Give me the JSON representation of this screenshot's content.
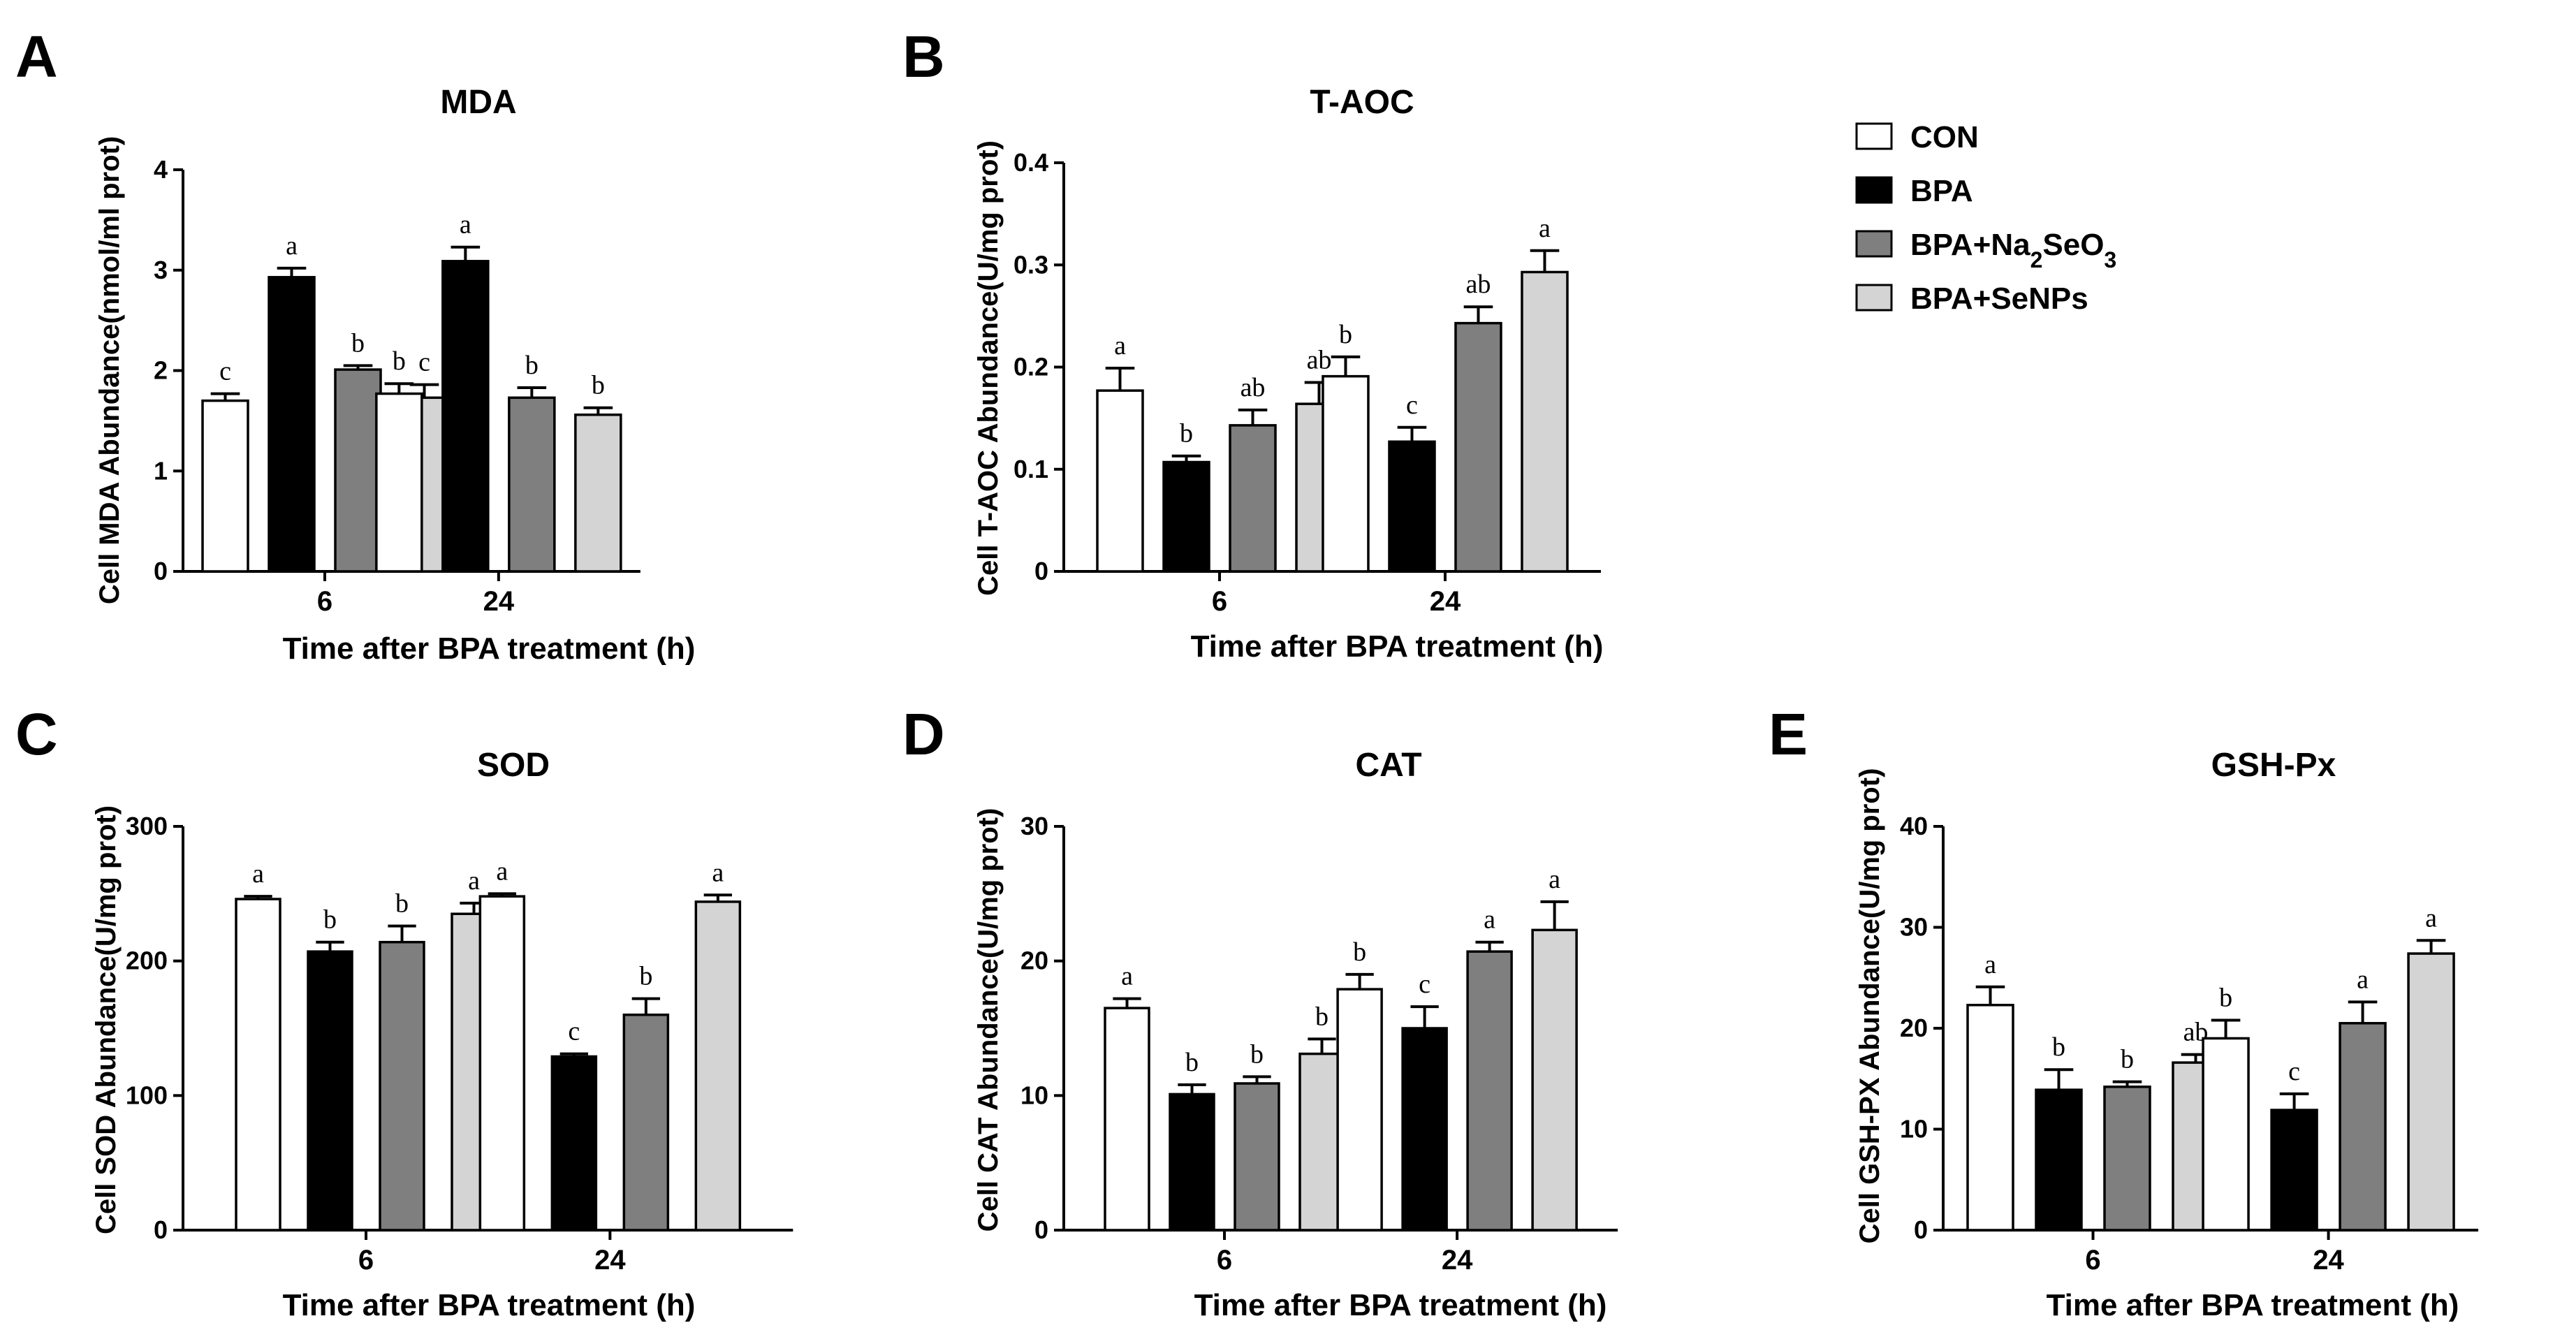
{
  "chart_data": [
    {
      "type": "bar",
      "panel": "A",
      "title": "MDA",
      "ylabel": "Cell MDA Abundance(nmol/ml prot)",
      "xlabel": "Time after BPA treatment (h)",
      "categories": [
        "6",
        "24"
      ],
      "ylim": [
        0,
        4
      ],
      "yticks": [
        "0",
        "1",
        "2",
        "3",
        "4"
      ],
      "series": [
        {
          "name": "CON",
          "values": [
            1.7,
            1.77
          ],
          "errors": [
            0.07,
            0.1
          ],
          "letters": [
            "c",
            "b"
          ]
        },
        {
          "name": "BPA",
          "values": [
            2.93,
            3.09
          ],
          "errors": [
            0.09,
            0.14
          ],
          "letters": [
            "a",
            "a"
          ]
        },
        {
          "name": "BPA+Na2SeO3",
          "values": [
            2.01,
            1.73
          ],
          "errors": [
            0.04,
            0.1
          ],
          "letters": [
            "b",
            "b"
          ]
        },
        {
          "name": "BPA+SeNPs",
          "values": [
            1.73,
            1.56
          ],
          "errors": [
            0.13,
            0.07
          ],
          "letters": [
            "c",
            "b"
          ]
        }
      ]
    },
    {
      "type": "bar",
      "panel": "B",
      "title": "T-AOC",
      "ylabel": "Cell T-AOC Abundance(U/mg prot)",
      "xlabel": "Time after BPA treatment (h)",
      "categories": [
        "6",
        "24"
      ],
      "ylim": [
        0,
        0.4
      ],
      "yticks": [
        "0",
        "0.1",
        "0.2",
        "0.3",
        "0.4"
      ],
      "series": [
        {
          "name": "CON",
          "values": [
            0.177,
            0.191
          ],
          "errors": [
            0.022,
            0.019
          ],
          "letters": [
            "a",
            "b"
          ]
        },
        {
          "name": "BPA",
          "values": [
            0.107,
            0.127
          ],
          "errors": [
            0.006,
            0.014
          ],
          "letters": [
            "b",
            "c"
          ]
        },
        {
          "name": "BPA+Na2SeO3",
          "values": [
            0.143,
            0.243
          ],
          "errors": [
            0.015,
            0.016
          ],
          "letters": [
            "ab",
            "ab"
          ]
        },
        {
          "name": "BPA+SeNPs",
          "values": [
            0.164,
            0.293
          ],
          "errors": [
            0.021,
            0.021
          ],
          "letters": [
            "ab",
            "a"
          ]
        }
      ]
    },
    {
      "type": "bar",
      "panel": "C",
      "title": "SOD",
      "ylabel": "Cell SOD Abundance(U/mg prot)",
      "xlabel": "Time after BPA treatment (h)",
      "categories": [
        "6",
        "24"
      ],
      "ylim": [
        0,
        300
      ],
      "yticks": [
        "0",
        "100",
        "200",
        "300"
      ],
      "series": [
        {
          "name": "CON",
          "values": [
            246,
            248
          ],
          "errors": [
            2,
            2
          ],
          "letters": [
            "a",
            "a"
          ]
        },
        {
          "name": "BPA",
          "values": [
            207,
            129
          ],
          "errors": [
            7,
            2
          ],
          "letters": [
            "b",
            "c"
          ]
        },
        {
          "name": "BPA+Na2SeO3",
          "values": [
            214,
            160
          ],
          "errors": [
            12,
            12
          ],
          "letters": [
            "b",
            "b"
          ]
        },
        {
          "name": "BPA+SeNPs",
          "values": [
            235,
            244
          ],
          "errors": [
            8,
            5
          ],
          "letters": [
            "a",
            "a"
          ]
        }
      ]
    },
    {
      "type": "bar",
      "panel": "D",
      "title": "CAT",
      "ylabel": "Cell CAT Abundance(U/mg prot)",
      "xlabel": "Time after BPA treatment (h)",
      "categories": [
        "6",
        "24"
      ],
      "ylim": [
        0,
        30
      ],
      "yticks": [
        "0",
        "10",
        "20",
        "30"
      ],
      "series": [
        {
          "name": "CON",
          "values": [
            16.5,
            17.9
          ],
          "errors": [
            0.7,
            1.1
          ],
          "letters": [
            "a",
            "b"
          ]
        },
        {
          "name": "BPA",
          "values": [
            10.1,
            15.0
          ],
          "errors": [
            0.7,
            1.6
          ],
          "letters": [
            "b",
            "c"
          ]
        },
        {
          "name": "BPA+Na2SeO3",
          "values": [
            10.9,
            20.7
          ],
          "errors": [
            0.5,
            0.7
          ],
          "letters": [
            "b",
            "a"
          ]
        },
        {
          "name": "BPA+SeNPs",
          "values": [
            13.1,
            22.3
          ],
          "errors": [
            1.1,
            2.1
          ],
          "letters": [
            "b",
            "a"
          ]
        }
      ]
    },
    {
      "type": "bar",
      "panel": "E",
      "title": "GSH-Px",
      "ylabel": "Cell GSH-PX Abundance(U/mg prot)",
      "xlabel": "Time after BPA treatment (h)",
      "categories": [
        "6",
        "24"
      ],
      "ylim": [
        0,
        40
      ],
      "yticks": [
        "0",
        "10",
        "20",
        "30",
        "40"
      ],
      "series": [
        {
          "name": "CON",
          "values": [
            22.3,
            19.0
          ],
          "errors": [
            1.8,
            1.8
          ],
          "letters": [
            "a",
            "b"
          ]
        },
        {
          "name": "BPA",
          "values": [
            13.9,
            11.9
          ],
          "errors": [
            2.0,
            1.6
          ],
          "letters": [
            "b",
            "c"
          ]
        },
        {
          "name": "BPA+Na2SeO3",
          "values": [
            14.2,
            20.5
          ],
          "errors": [
            0.5,
            2.1
          ],
          "letters": [
            "b",
            "a"
          ]
        },
        {
          "name": "BPA+SeNPs",
          "values": [
            16.6,
            27.4
          ],
          "errors": [
            0.8,
            1.3
          ],
          "letters": [
            "ab",
            "a"
          ]
        }
      ]
    }
  ],
  "legend": {
    "entries": [
      {
        "label": "CON",
        "color": "#ffffff"
      },
      {
        "label": "BPA",
        "color": "#000000"
      },
      {
        "label": "BPA+Na2SeO3",
        "color": "#7f7f7f"
      },
      {
        "label": "BPA+SeNPs",
        "color": "#d4d4d4"
      }
    ]
  },
  "colors": {
    "CON": "#ffffff",
    "BPA": "#000000",
    "BPA+Na2SeO3": "#7f7f7f",
    "BPA+SeNPs": "#d4d4d4",
    "axis": "#000000"
  }
}
